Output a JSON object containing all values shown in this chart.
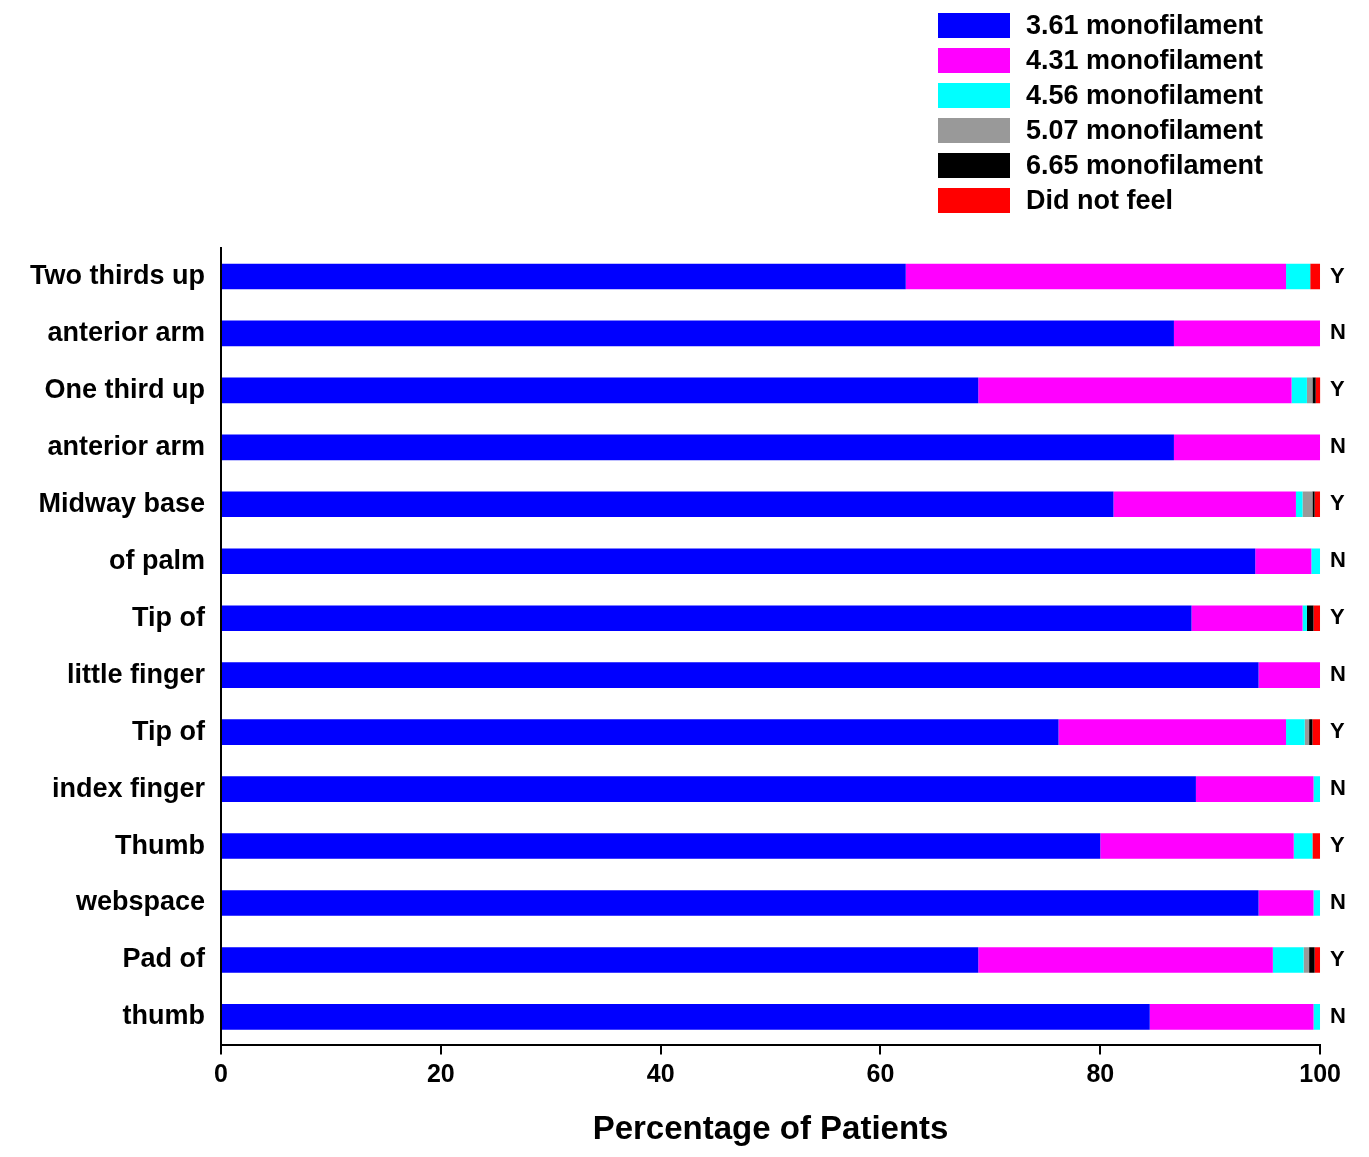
{
  "chart_data": {
    "type": "bar",
    "orientation": "horizontal",
    "stacked": true,
    "legend": "top right",
    "xlabel": "Percentage of Patients",
    "xlim": [
      0,
      100
    ],
    "xticks": [
      0,
      20,
      40,
      60,
      80,
      100
    ],
    "categories": [
      "Y",
      "N",
      "Y",
      "N",
      "Y",
      "N",
      "Y",
      "N",
      "Y",
      "N",
      "Y",
      "N",
      "Y",
      "N"
    ],
    "annotations": [
      "Two thirds up\nanterior arm",
      "One third up\nanterior arm",
      "Midway base\nof palm",
      "Tip of\nlittle finger",
      "Tip of\nindex finger",
      "Thumb\nwebspace",
      "Pad of\nthumb"
    ],
    "series": [
      {
        "name": "3.61 monofilament",
        "color": "#0000ff",
        "values": [
          62.3,
          86.7,
          68.9,
          86.7,
          81.2,
          94.1,
          88.3,
          94.4,
          76.2,
          88.7,
          80.0,
          94.4,
          68.9,
          84.5
        ]
      },
      {
        "name": "4.31 monofilament",
        "color": "#ff00ff",
        "values": [
          34.6,
          13.3,
          28.5,
          13.3,
          16.6,
          5.1,
          10.1,
          5.6,
          20.7,
          10.7,
          17.6,
          5.0,
          26.8,
          14.9
        ]
      },
      {
        "name": "4.56 monofilament",
        "color": "#00ffff",
        "values": [
          2.2,
          0,
          1.4,
          0,
          0.6,
          0.8,
          0.4,
          0,
          1.7,
          0.6,
          1.7,
          0.6,
          2.8,
          0.6
        ]
      },
      {
        "name": "5.07 monofilament",
        "color": "#999999",
        "values": [
          0,
          0,
          0.5,
          0,
          0.9,
          0,
          0,
          0,
          0.4,
          0,
          0,
          0,
          0.5,
          0
        ]
      },
      {
        "name": "6.65 monofilament",
        "color": "#000000",
        "values": [
          0,
          0,
          0.3,
          0,
          0.2,
          0,
          0.6,
          0,
          0.3,
          0,
          0,
          0,
          0.5,
          0
        ]
      },
      {
        "name": "Did not feel",
        "color": "#ff0000",
        "values": [
          0.9,
          0,
          0.5,
          0,
          0.5,
          0,
          0.6,
          0,
          0.7,
          0,
          0.7,
          0,
          0.5,
          0
        ]
      }
    ]
  }
}
